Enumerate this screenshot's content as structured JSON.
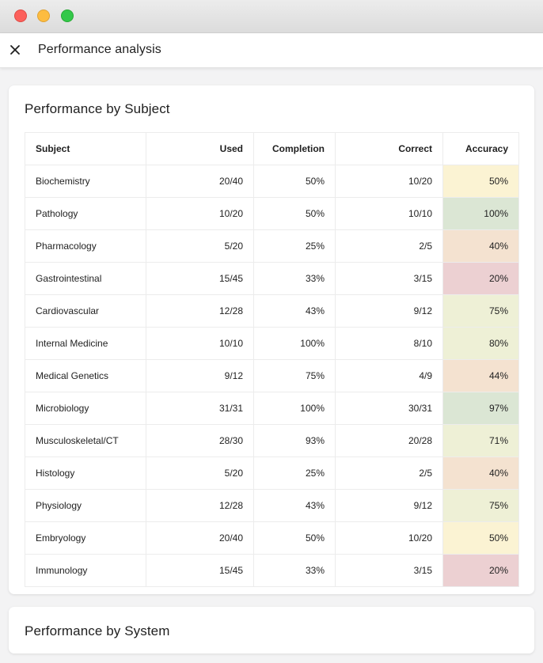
{
  "window": {
    "title": "Performance analysis"
  },
  "header": {
    "close_icon": "close-icon",
    "title": "Performance analysis"
  },
  "subject_card": {
    "title": "Performance by Subject",
    "columns": [
      "Subject",
      "Used",
      "Completion",
      "Correct",
      "Accuracy"
    ],
    "rows": [
      {
        "subject": "Biochemistry",
        "used": "20/40",
        "completion": "50%",
        "correct": "10/20",
        "accuracy": "50%",
        "level": "mid"
      },
      {
        "subject": "Pathology",
        "used": "10/20",
        "completion": "50%",
        "correct": "10/10",
        "accuracy": "100%",
        "level": "hi"
      },
      {
        "subject": "Pharmacology",
        "used": "5/20",
        "completion": "25%",
        "correct": "2/5",
        "accuracy": "40%",
        "level": "low"
      },
      {
        "subject": "Gastrointestinal",
        "used": "15/45",
        "completion": "33%",
        "correct": "3/15",
        "accuracy": "20%",
        "level": "bad"
      },
      {
        "subject": "Cardiovascular",
        "used": "12/28",
        "completion": "43%",
        "correct": "9/12",
        "accuracy": "75%",
        "level": "good"
      },
      {
        "subject": "Internal Medicine",
        "used": "10/10",
        "completion": "100%",
        "correct": "8/10",
        "accuracy": "80%",
        "level": "good"
      },
      {
        "subject": "Medical Genetics",
        "used": "9/12",
        "completion": "75%",
        "correct": "4/9",
        "accuracy": "44%",
        "level": "low"
      },
      {
        "subject": "Microbiology",
        "used": "31/31",
        "completion": "100%",
        "correct": "30/31",
        "accuracy": "97%",
        "level": "hi"
      },
      {
        "subject": "Musculoskeletal/CT",
        "used": "28/30",
        "completion": "93%",
        "correct": "20/28",
        "accuracy": "71%",
        "level": "good"
      },
      {
        "subject": "Histology",
        "used": "5/20",
        "completion": "25%",
        "correct": "2/5",
        "accuracy": "40%",
        "level": "low"
      },
      {
        "subject": "Physiology",
        "used": "12/28",
        "completion": "43%",
        "correct": "9/12",
        "accuracy": "75%",
        "level": "good"
      },
      {
        "subject": "Embryology",
        "used": "20/40",
        "completion": "50%",
        "correct": "10/20",
        "accuracy": "50%",
        "level": "mid"
      },
      {
        "subject": "Immunology",
        "used": "15/45",
        "completion": "33%",
        "correct": "3/15",
        "accuracy": "20%",
        "level": "bad"
      }
    ]
  },
  "system_card": {
    "title": "Performance by System"
  },
  "colors": {
    "accuracy_high": "#dbe6d4",
    "accuracy_good": "#eef0d6",
    "accuracy_mid": "#fbf3d3",
    "accuracy_low": "#f4e2d0",
    "accuracy_bad": "#ecd0d2"
  }
}
